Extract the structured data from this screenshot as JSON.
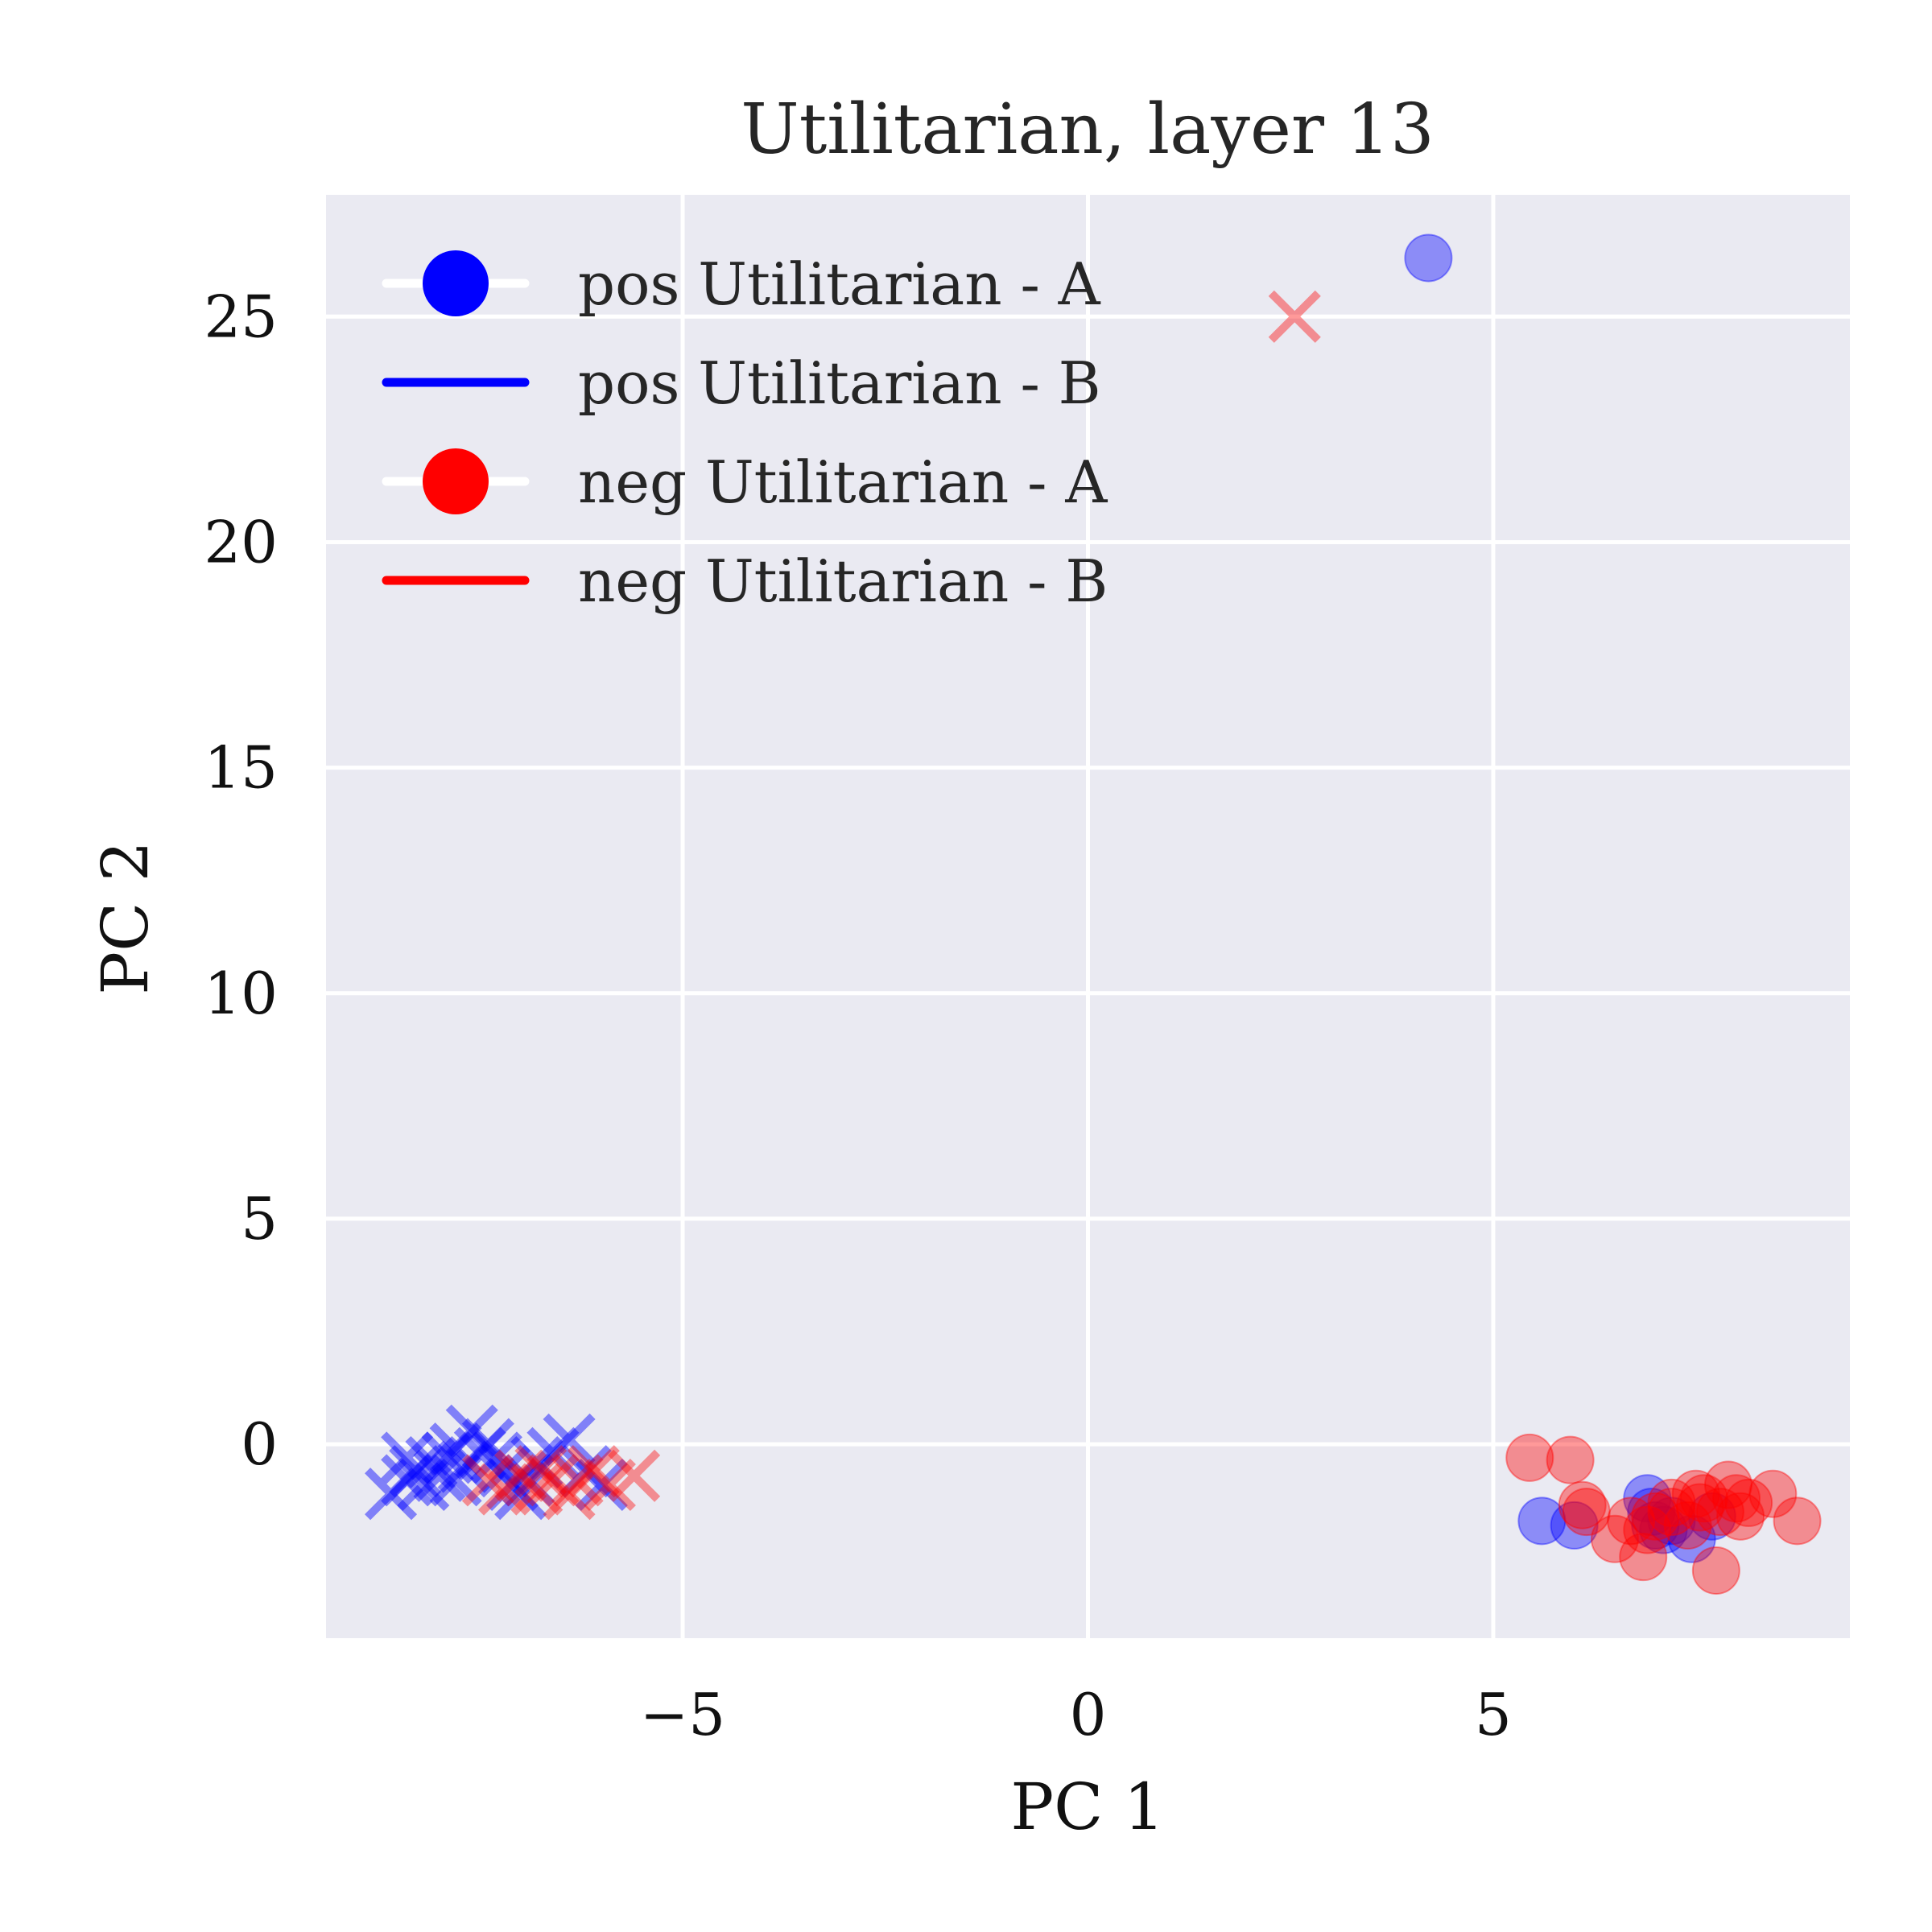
{
  "chart_data": {
    "type": "scatter",
    "title": "Utilitarian, layer 13",
    "xlabel": "PC 1",
    "ylabel": "PC 2",
    "xlim": [
      -9.4,
      9.4
    ],
    "ylim": [
      -4.3,
      27.7
    ],
    "xticks": [
      -5,
      0,
      5
    ],
    "xtick_labels": [
      "−5",
      "0",
      "5"
    ],
    "yticks": [
      0,
      5,
      10,
      15,
      20,
      25
    ],
    "ytick_labels": [
      "0",
      "5",
      "10",
      "15",
      "20",
      "25"
    ],
    "grid": true,
    "background": "#eaeaf2",
    "grid_color": "#ffffff",
    "legend": {
      "position": "top-left",
      "entries": [
        {
          "label": "pos Utilitarian - A",
          "color": "#0000ff",
          "marker": "circle"
        },
        {
          "label": "pos Utilitarian - B",
          "color": "#0000ff",
          "marker": "line"
        },
        {
          "label": "neg Utilitarian - A",
          "color": "#ff0000",
          "marker": "circle"
        },
        {
          "label": "neg Utilitarian - B",
          "color": "#ff0000",
          "marker": "line"
        }
      ]
    },
    "series": [
      {
        "color": "#0000ff",
        "marker": "o",
        "alpha": 0.4,
        "points": [
          [
            4.2,
            26.3
          ],
          [
            5.6,
            -1.7
          ],
          [
            6.0,
            -1.8
          ],
          [
            6.9,
            -1.2
          ],
          [
            6.95,
            -1.5
          ],
          [
            7.0,
            -1.8
          ],
          [
            7.1,
            -1.9
          ],
          [
            7.45,
            -2.1
          ],
          [
            7.7,
            -1.6
          ],
          [
            7.2,
            -1.7
          ]
        ]
      },
      {
        "color": "#0000ff",
        "marker": "x",
        "alpha": 0.45,
        "points": [
          [
            -8.6,
            -1.1
          ],
          [
            -8.4,
            -0.8
          ],
          [
            -8.3,
            -0.6
          ],
          [
            -8.2,
            -0.9
          ],
          [
            -8.1,
            -0.4
          ],
          [
            -8.0,
            -0.7
          ],
          [
            -7.9,
            -0.3
          ],
          [
            -7.8,
            -0.1
          ],
          [
            -7.7,
            -0.5
          ],
          [
            -7.6,
            0.3
          ],
          [
            -7.5,
            -0.2
          ],
          [
            -7.4,
            0.0
          ],
          [
            -7.8,
            -0.8
          ],
          [
            -7.3,
            -0.3
          ],
          [
            -7.2,
            -0.6
          ],
          [
            -7.0,
            -1.1
          ],
          [
            -6.9,
            -0.8
          ],
          [
            -6.8,
            -0.4
          ],
          [
            -6.6,
            -0.2
          ],
          [
            -6.4,
            0.1
          ],
          [
            -6.2,
            -0.6
          ],
          [
            -6.0,
            -0.9
          ],
          [
            -8.4,
            -0.3
          ],
          [
            -7.1,
            -0.9
          ]
        ]
      },
      {
        "color": "#ff0000",
        "marker": "o",
        "alpha": 0.4,
        "points": [
          [
            5.45,
            -0.3
          ],
          [
            5.95,
            -0.35
          ],
          [
            6.1,
            -1.35
          ],
          [
            6.15,
            -1.5
          ],
          [
            6.5,
            -2.1
          ],
          [
            6.85,
            -2.5
          ],
          [
            6.9,
            -1.9
          ],
          [
            7.0,
            -1.6
          ],
          [
            7.2,
            -1.5
          ],
          [
            7.4,
            -1.8
          ],
          [
            7.5,
            -1.1
          ],
          [
            7.6,
            -1.2
          ],
          [
            7.75,
            -2.8
          ],
          [
            7.8,
            -1.5
          ],
          [
            7.9,
            -0.9
          ],
          [
            8.0,
            -1.2
          ],
          [
            8.05,
            -1.6
          ],
          [
            8.15,
            -1.3
          ],
          [
            8.45,
            -1.1
          ],
          [
            8.75,
            -1.7
          ],
          [
            7.2,
            -1.3
          ],
          [
            7.55,
            -1.4
          ],
          [
            6.7,
            -1.7
          ]
        ]
      },
      {
        "color": "#ff0000",
        "marker": "x",
        "alpha": 0.4,
        "points": [
          [
            2.55,
            25.0
          ],
          [
            -7.4,
            -0.8
          ],
          [
            -7.2,
            -1.0
          ],
          [
            -7.0,
            -0.7
          ],
          [
            -6.8,
            -1.0
          ],
          [
            -6.6,
            -0.8
          ],
          [
            -6.4,
            -1.1
          ],
          [
            -6.3,
            -0.8
          ],
          [
            -6.1,
            -0.6
          ],
          [
            -5.9,
            -0.9
          ],
          [
            -5.6,
            -0.7
          ],
          [
            -6.75,
            -0.6
          ]
        ]
      }
    ]
  }
}
